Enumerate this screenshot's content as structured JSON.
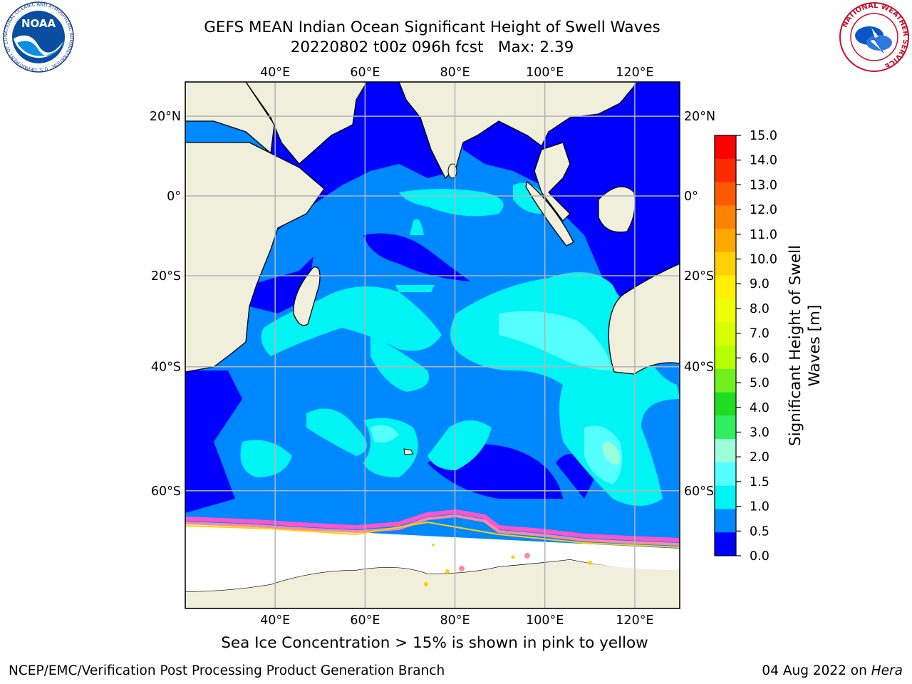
{
  "title": {
    "line1": "GEFS MEAN Indian Ocean Significant Height of Swell Waves",
    "line2": "20220802 t00z 096h fcst   Max: 2.39"
  },
  "caption": "Sea Ice Concentration > 15% is shown in pink to yellow",
  "footer": {
    "left": "NCEP/EMC/Verification Post Processing Product Generation Branch",
    "date": "04 Aug 2022 on",
    "host": "Hera"
  },
  "logos": {
    "left": {
      "name": "noaa-logo",
      "text": "NOAA",
      "ring_text": "NATIONAL OCEANIC AND ATMOSPHERIC ADMINISTRATION · U.S. DEPARTMENT OF COMMERCE"
    },
    "right": {
      "name": "nws-logo",
      "ring_text": "NATIONAL WEATHER SERVICE"
    }
  },
  "map": {
    "lon_range": [
      20,
      130
    ],
    "lat_range": [
      -72,
      28
    ],
    "lon_ticks": [
      40,
      60,
      80,
      100,
      120
    ],
    "lon_labels": [
      "40°E",
      "60°E",
      "80°E",
      "100°E",
      "120°E"
    ],
    "lat_ticks": [
      20,
      0,
      -20,
      -40,
      -60
    ],
    "lat_labels": [
      "20°N",
      "0°",
      "20°S",
      "40°S",
      "60°S"
    ],
    "colors": {
      "land": "#efefdc",
      "ice": "#ffffff",
      "grid": "#b4b4b4",
      "coast": "#000000"
    }
  },
  "colorbar": {
    "label_line1": "Significant Height of Swell",
    "label_line2": "Waves [m]",
    "ticks": [
      "15.0",
      "14.0",
      "13.0",
      "12.0",
      "11.0",
      "10.0",
      "9.0",
      "8.0",
      "7.0",
      "6.0",
      "5.0",
      "4.0",
      "3.0",
      "2.0",
      "1.5",
      "1.0",
      "0.5",
      "0.0"
    ],
    "colors_top_to_bottom": [
      "#ff0000",
      "#ff2a00",
      "#ff5a00",
      "#ff8200",
      "#ffa800",
      "#ffd000",
      "#fff000",
      "#f0ff00",
      "#d8ff00",
      "#b8ff00",
      "#70f020",
      "#20dc20",
      "#30ee60",
      "#9cffdc",
      "#55ffff",
      "#00f4f4",
      "#0088ff",
      "#0000ff"
    ]
  }
}
